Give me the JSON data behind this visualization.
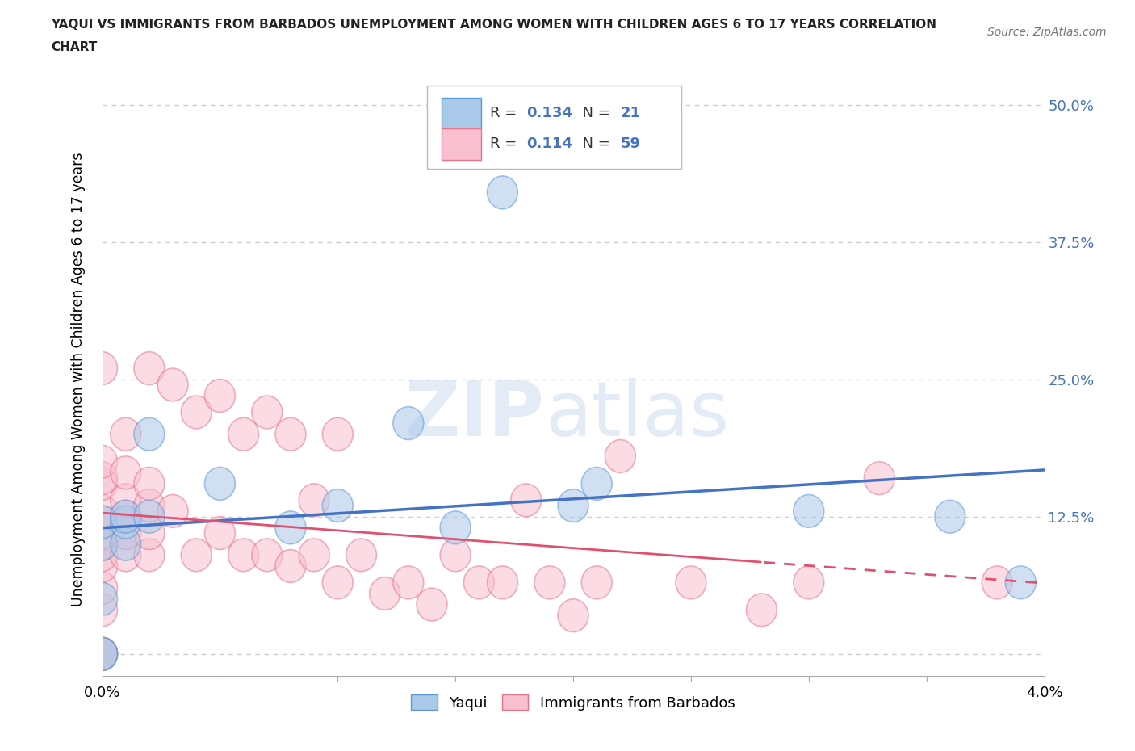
{
  "title_line1": "YAQUI VS IMMIGRANTS FROM BARBADOS UNEMPLOYMENT AMONG WOMEN WITH CHILDREN AGES 6 TO 17 YEARS CORRELATION",
  "title_line2": "CHART",
  "source": "Source: ZipAtlas.com",
  "ylabel": "Unemployment Among Women with Children Ages 6 to 17 years",
  "xlim": [
    0.0,
    0.04
  ],
  "ylim": [
    -0.02,
    0.52
  ],
  "yticks": [
    0.0,
    0.125,
    0.25,
    0.375,
    0.5
  ],
  "ytick_labels": [
    "",
    "12.5%",
    "25.0%",
    "37.5%",
    "50.0%"
  ],
  "legend_yaqui_R": "0.134",
  "legend_yaqui_N": "21",
  "legend_barbados_R": "0.114",
  "legend_barbados_N": "59",
  "yaqui_color_fill": "#aac8e8",
  "yaqui_color_edge": "#5b9bd5",
  "barbados_color_fill": "#f9c0d0",
  "barbados_color_edge": "#e8748a",
  "yaqui_line_color": "#4472c4",
  "barbados_line_color": "#e05070",
  "background_color": "#ffffff",
  "grid_color": "#cccccc",
  "yaqui_x": [
    0.0,
    0.0,
    0.0,
    0.0,
    0.0,
    0.001,
    0.001,
    0.001,
    0.002,
    0.002,
    0.005,
    0.008,
    0.01,
    0.013,
    0.015,
    0.017,
    0.02,
    0.021,
    0.03,
    0.036,
    0.039
  ],
  "yaqui_y": [
    0.0,
    0.0,
    0.05,
    0.1,
    0.12,
    0.1,
    0.12,
    0.125,
    0.125,
    0.2,
    0.155,
    0.115,
    0.135,
    0.21,
    0.115,
    0.42,
    0.135,
    0.155,
    0.13,
    0.125,
    0.065
  ],
  "barbados_x": [
    0.0,
    0.0,
    0.0,
    0.0,
    0.0,
    0.0,
    0.0,
    0.0,
    0.0,
    0.0,
    0.0,
    0.0,
    0.0,
    0.0,
    0.0,
    0.001,
    0.001,
    0.001,
    0.001,
    0.001,
    0.001,
    0.002,
    0.002,
    0.002,
    0.002,
    0.002,
    0.003,
    0.003,
    0.004,
    0.004,
    0.005,
    0.005,
    0.006,
    0.006,
    0.007,
    0.007,
    0.008,
    0.008,
    0.009,
    0.009,
    0.01,
    0.01,
    0.011,
    0.012,
    0.013,
    0.014,
    0.015,
    0.016,
    0.017,
    0.018,
    0.019,
    0.02,
    0.021,
    0.022,
    0.025,
    0.028,
    0.03,
    0.033,
    0.038
  ],
  "barbados_y": [
    0.0,
    0.0,
    0.0,
    0.04,
    0.06,
    0.08,
    0.09,
    0.1,
    0.11,
    0.12,
    0.13,
    0.155,
    0.16,
    0.175,
    0.26,
    0.09,
    0.11,
    0.125,
    0.14,
    0.165,
    0.2,
    0.09,
    0.11,
    0.135,
    0.155,
    0.26,
    0.13,
    0.245,
    0.09,
    0.22,
    0.11,
    0.235,
    0.09,
    0.2,
    0.09,
    0.22,
    0.08,
    0.2,
    0.09,
    0.14,
    0.065,
    0.2,
    0.09,
    0.055,
    0.065,
    0.045,
    0.09,
    0.065,
    0.065,
    0.14,
    0.065,
    0.035,
    0.065,
    0.18,
    0.065,
    0.04,
    0.065,
    0.16,
    0.065
  ]
}
